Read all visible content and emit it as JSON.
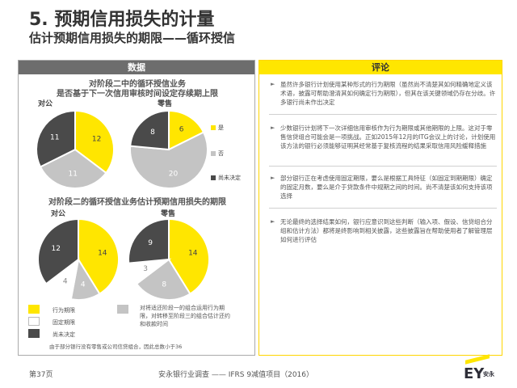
{
  "header": {
    "title": "5. 预期信用损失的计量",
    "subtitle": "估计预期信用损失的期限——循环授信"
  },
  "left_panel": {
    "heading": "数据",
    "chart1_title_line1": "对阶段二中的循环授信业务",
    "chart1_title_line2": "是否基于下一次信用审核时间设定存续期上限",
    "chart2_title": "对阶段二的循环授信业务估计预期信用损失的期限",
    "corporate_label": "对公",
    "retail_label": "零售",
    "legend_yes": "是",
    "legend_no": "否",
    "legend_undecided": "尚未决定",
    "legend_behavioral": "行为期限",
    "legend_fixed": "固定期限",
    "legend_stage1": "对将适还阶段一的组合运用行为期限，对转移至阶段三的组合估计还约和收款时间",
    "legend_pending": "尚未决定",
    "footnote": "由于部分银行没有零售或公司信贷组合，因此总数小于36"
  },
  "right_panel": {
    "heading": "评论",
    "comments": [
      "虽然许多银行计划使用某种形式的行为期限（虽然尚不清楚其如何精确地定义该术语，披露可帮助澄清其如何确定行为期限），但其在该关键领域仍存在分歧。许多银行尚未作出决定",
      "少数银行计划将下一次详细信用审核作为行为期限或其他期限的上限。这对于零售信贷组合可能会是一项挑战。正如2015年12月的ITG会议上的讨论，计划使用该方法的银行必须能够证明其经常基于复核流程的结果采取信用风险缓释措施",
      "部分银行正在考虑使用固定期限，要么是根据工具特征（如固定到期期限）确定的固定月数，要么是介于贷款条件中规期之间的时间。尚不清楚该如何支持该项选择",
      "无论最终的选择结果如何，银行应意识到这些判断（输入项、假设、信贷组合分组和估计方法）都将是终影响到相关披露，这些披露旨在帮助使用者了解管理层如何进行评估"
    ],
    "bullet_glyph": "►"
  },
  "footer": {
    "page": "第37页",
    "center": "安永银行业调查 —— IFRS 9减值项目（2016）",
    "logo_text": "EY",
    "logo_cn": "安永"
  },
  "colors": {
    "yellow": "#ffe600",
    "light_grey": "#c4c4c4",
    "dark_grey": "#4a4a4a",
    "header_grey": "#6d6d6d"
  },
  "chart_data": [
    {
      "type": "pie",
      "title": "对阶段二中的循环授信业务是否基于下一次信用审核时间设定存续期上限",
      "charts": [
        {
          "label": "对公",
          "slices": [
            {
              "name": "是",
              "value": 12
            },
            {
              "name": "否",
              "value": 11
            },
            {
              "name": "尚未决定",
              "value": 11
            }
          ]
        },
        {
          "label": "零售",
          "slices": [
            {
              "name": "是",
              "value": 6
            },
            {
              "name": "否",
              "value": 20
            },
            {
              "name": "尚未决定",
              "value": 8
            }
          ]
        }
      ],
      "legend": [
        "是",
        "否",
        "尚未决定"
      ]
    },
    {
      "type": "pie",
      "title": "对阶段二的循环授信业务估计预期信用损失的期限",
      "charts": [
        {
          "label": "对公",
          "slices": [
            {
              "name": "行为期限",
              "value": 14
            },
            {
              "name": "对将适还阶段一的组合运用行为期限，对转移至阶段三的组合估计还约和收款时间",
              "value": 4
            },
            {
              "name": "固定期限",
              "value": 4
            },
            {
              "name": "尚未决定",
              "value": 12
            }
          ]
        },
        {
          "label": "零售",
          "slices": [
            {
              "name": "行为期限",
              "value": 14
            },
            {
              "name": "对将适还阶段一的组合运用行为期限，对转移至阶段三的组合估计还约和收款时间",
              "value": 8
            },
            {
              "name": "固定期限",
              "value": 3
            },
            {
              "name": "尚未决定",
              "value": 9
            }
          ]
        }
      ]
    }
  ]
}
